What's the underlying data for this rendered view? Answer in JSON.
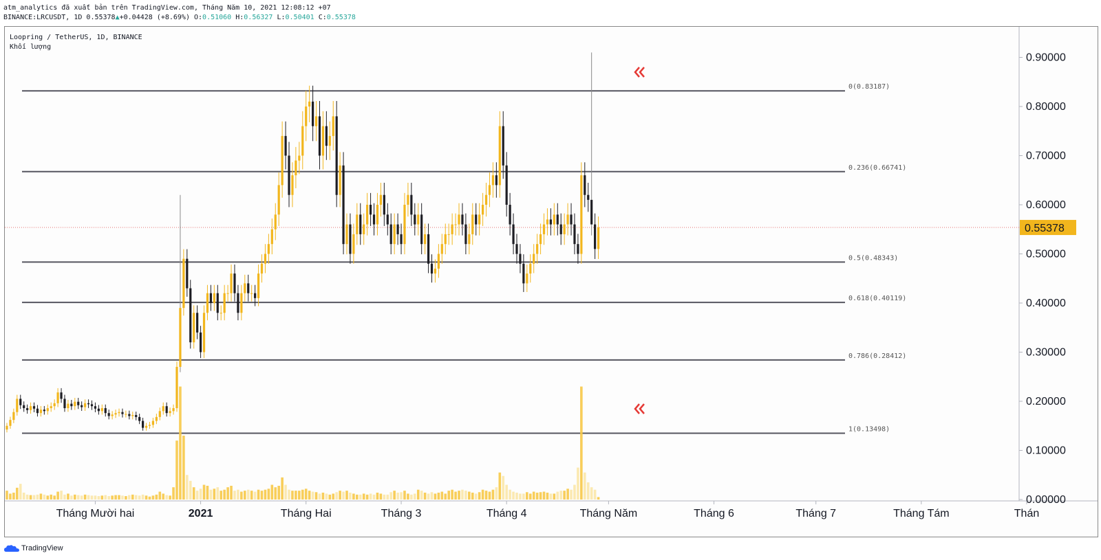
{
  "header": {
    "line1": "atm_analytics đã xuất bản trên TradingView.com, Tháng Năm 10, 2021 12:08:12 +07",
    "symbol": "BINANCE:LRCUSDT, 1D",
    "last": "0.55378",
    "change": "+0.04428 (+8.69%)",
    "o_label": "O:",
    "o": "0.51060",
    "h_label": "H:",
    "h": "0.56327",
    "l_label": "L:",
    "l": "0.50401",
    "c_label": "C:",
    "c": "0.55378"
  },
  "legend": {
    "pair": "Loopring / TetherUS, 1D, BINANCE",
    "volume": "Khối lượng"
  },
  "footer": {
    "brand": "TradingView"
  },
  "colors": {
    "up": "#f2b61d",
    "down": "#1e1e24",
    "fib_line": "#55555f",
    "price_tag": "#f2b61d",
    "arrow": "#e53935",
    "volume_up": "#f7c948",
    "volume_down": "#fbe7a8"
  },
  "chart_data": {
    "type": "candlestick",
    "title": "Loopring / TetherUS, 1D, BINANCE",
    "last_price": 0.55378,
    "y_range": [
      0,
      0.93
    ],
    "y_ticks": [
      "0.90000",
      "0.80000",
      "0.70000",
      "0.60000",
      "0.50000",
      "0.40000",
      "0.30000",
      "0.20000",
      "0.10000",
      "0.00000"
    ],
    "y_tick_values": [
      0.9,
      0.8,
      0.7,
      0.6,
      0.5,
      0.4,
      0.3,
      0.2,
      0.1,
      0.0
    ],
    "x_labels": [
      "Tháng Mười hai",
      "2021",
      "Tháng Hai",
      "Tháng 3",
      "Tháng 4",
      "Tháng Năm",
      "Tháng 6",
      "Tháng 7",
      "Tháng Tám",
      "Thán"
    ],
    "x_label_dates": [
      "2020-12-01",
      "2021-01-01",
      "2021-02-01",
      "2021-03-01",
      "2021-04-01",
      "2021-05-01",
      "2021-06-01",
      "2021-07-01",
      "2021-08-01",
      "2021-09-01"
    ],
    "first_date": "2020-11-05",
    "fib_levels": [
      {
        "label": "0(0.83187)",
        "value": 0.83187
      },
      {
        "label": "0.236(0.66741)",
        "value": 0.66741
      },
      {
        "label": "0.5(0.48343)",
        "value": 0.48343
      },
      {
        "label": "0.618(0.40119)",
        "value": 0.40119
      },
      {
        "label": "0.786(0.28412)",
        "value": 0.28412
      },
      {
        "label": "1(0.13498)",
        "value": 0.13498
      }
    ],
    "closes": [
      0.15,
      0.162,
      0.178,
      0.205,
      0.192,
      0.186,
      0.182,
      0.19,
      0.185,
      0.176,
      0.183,
      0.18,
      0.186,
      0.19,
      0.196,
      0.218,
      0.205,
      0.186,
      0.195,
      0.19,
      0.199,
      0.192,
      0.188,
      0.196,
      0.194,
      0.19,
      0.185,
      0.18,
      0.186,
      0.176,
      0.17,
      0.173,
      0.176,
      0.178,
      0.174,
      0.174,
      0.17,
      0.172,
      0.168,
      0.16,
      0.146,
      0.15,
      0.152,
      0.16,
      0.168,
      0.18,
      0.19,
      0.176,
      0.18,
      0.186,
      0.27,
      0.39,
      0.49,
      0.43,
      0.32,
      0.38,
      0.34,
      0.3,
      0.38,
      0.42,
      0.4,
      0.42,
      0.38,
      0.38,
      0.42,
      0.42,
      0.46,
      0.42,
      0.38,
      0.42,
      0.44,
      0.42,
      0.42,
      0.41,
      0.46,
      0.48,
      0.5,
      0.52,
      0.55,
      0.58,
      0.64,
      0.74,
      0.7,
      0.62,
      0.66,
      0.69,
      0.7,
      0.76,
      0.8,
      0.81,
      0.76,
      0.78,
      0.7,
      0.76,
      0.72,
      0.74,
      0.78,
      0.62,
      0.68,
      0.52,
      0.56,
      0.5,
      0.54,
      0.58,
      0.54,
      0.56,
      0.6,
      0.58,
      0.56,
      0.6,
      0.62,
      0.58,
      0.56,
      0.52,
      0.56,
      0.54,
      0.52,
      0.6,
      0.62,
      0.58,
      0.56,
      0.58,
      0.52,
      0.54,
      0.48,
      0.46,
      0.47,
      0.5,
      0.52,
      0.54,
      0.54,
      0.56,
      0.56,
      0.58,
      0.56,
      0.52,
      0.54,
      0.58,
      0.56,
      0.58,
      0.6,
      0.62,
      0.64,
      0.66,
      0.64,
      0.76,
      0.68,
      0.6,
      0.56,
      0.52,
      0.5,
      0.48,
      0.44,
      0.46,
      0.48,
      0.5,
      0.52,
      0.54,
      0.56,
      0.57,
      0.56,
      0.58,
      0.56,
      0.54,
      0.56,
      0.58,
      0.56,
      0.52,
      0.5,
      0.66,
      0.62,
      0.61,
      0.56,
      0.51,
      0.554
    ],
    "volumes": [
      0.018,
      0.012,
      0.014,
      0.024,
      0.032,
      0.014,
      0.01,
      0.009,
      0.009,
      0.01,
      0.012,
      0.01,
      0.008,
      0.01,
      0.008,
      0.016,
      0.018,
      0.01,
      0.012,
      0.008,
      0.01,
      0.009,
      0.008,
      0.01,
      0.009,
      0.008,
      0.008,
      0.007,
      0.008,
      0.009,
      0.007,
      0.008,
      0.009,
      0.009,
      0.008,
      0.007,
      0.009,
      0.01,
      0.009,
      0.008,
      0.01,
      0.008,
      0.006,
      0.008,
      0.01,
      0.016,
      0.012,
      0.009,
      0.008,
      0.025,
      0.12,
      0.23,
      0.13,
      0.05,
      0.038,
      0.025,
      0.018,
      0.022,
      0.03,
      0.028,
      0.02,
      0.022,
      0.025,
      0.018,
      0.02,
      0.025,
      0.028,
      0.018,
      0.02,
      0.016,
      0.018,
      0.02,
      0.018,
      0.016,
      0.02,
      0.018,
      0.02,
      0.022,
      0.03,
      0.025,
      0.028,
      0.045,
      0.03,
      0.02,
      0.018,
      0.018,
      0.018,
      0.02,
      0.022,
      0.018,
      0.016,
      0.015,
      0.012,
      0.014,
      0.012,
      0.01,
      0.012,
      0.015,
      0.018,
      0.016,
      0.018,
      0.014,
      0.012,
      0.01,
      0.01,
      0.012,
      0.01,
      0.012,
      0.01,
      0.014,
      0.012,
      0.01,
      0.01,
      0.015,
      0.018,
      0.014,
      0.015,
      0.018,
      0.012,
      0.01,
      0.012,
      0.02,
      0.018,
      0.014,
      0.012,
      0.015,
      0.012,
      0.014,
      0.016,
      0.012,
      0.018,
      0.02,
      0.016,
      0.018,
      0.02,
      0.018,
      0.016,
      0.014,
      0.012,
      0.015,
      0.02,
      0.018,
      0.016,
      0.02,
      0.025,
      0.055,
      0.048,
      0.03,
      0.02,
      0.016,
      0.014,
      0.012,
      0.012,
      0.015,
      0.012,
      0.016,
      0.014,
      0.015,
      0.016,
      0.014,
      0.012,
      0.012,
      0.016,
      0.018,
      0.018,
      0.022,
      0.02,
      0.03,
      0.065,
      0.23,
      0.055,
      0.035,
      0.025,
      0.02,
      0.005
    ],
    "wick_spikes": [
      {
        "index": 51,
        "high": 0.62
      },
      {
        "index": 172,
        "high": 0.91
      }
    ]
  }
}
